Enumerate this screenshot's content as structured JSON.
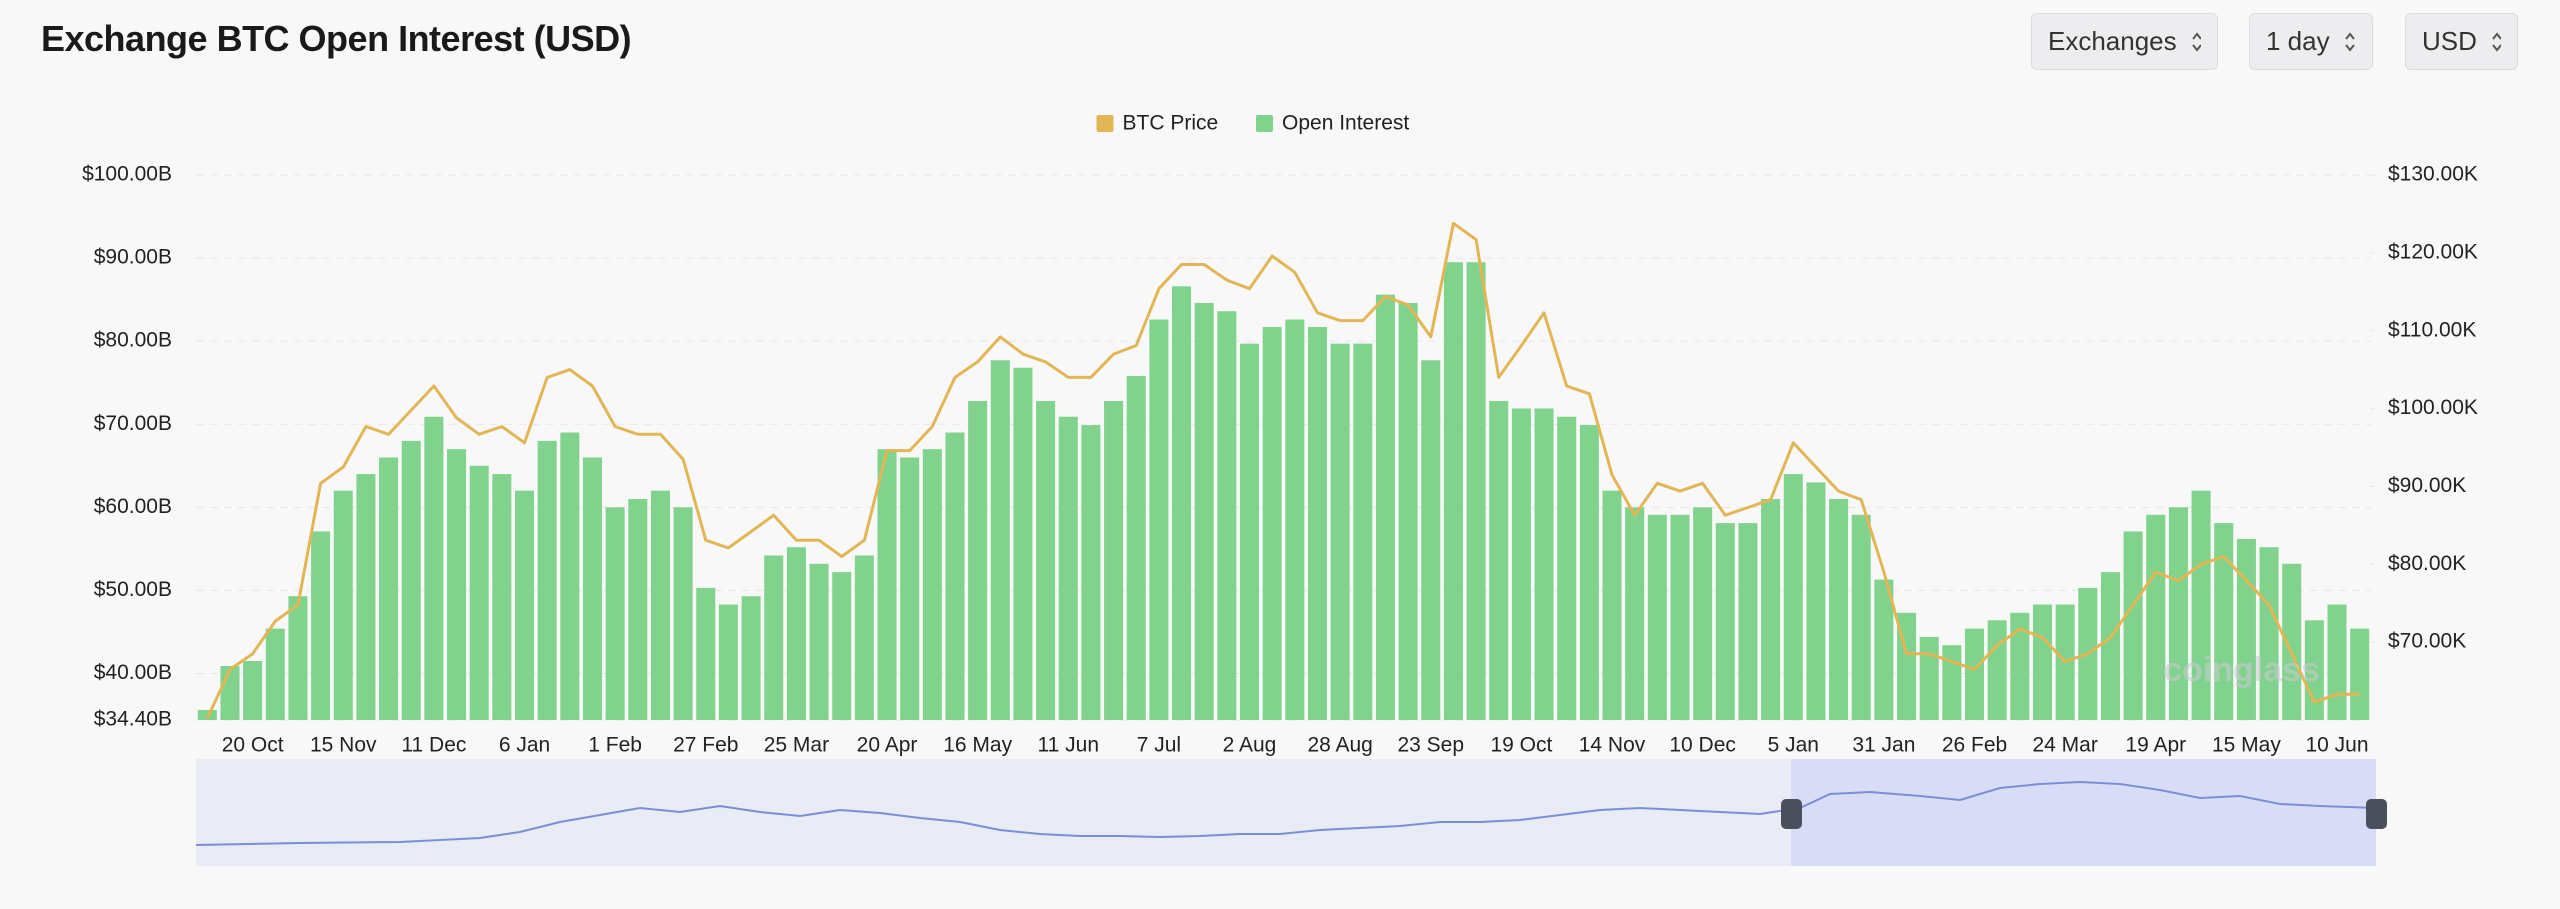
{
  "controls": [
    "Exchanges",
    "1 day",
    "USD"
  ],
  "chart_data": {
    "type": "bar",
    "title": "Exchange BTC Open Interest (USD)",
    "watermark": "coinglass",
    "legend": "top",
    "grid": true,
    "categories": [
      null,
      null,
      "20 Oct",
      null,
      null,
      null,
      "15 Nov",
      null,
      null,
      null,
      "11 Dec",
      null,
      null,
      null,
      "6 Jan",
      null,
      null,
      null,
      "1 Feb",
      null,
      null,
      null,
      "27 Feb",
      null,
      null,
      null,
      "25 Mar",
      null,
      null,
      null,
      "20 Apr",
      null,
      null,
      null,
      "16 May",
      null,
      null,
      null,
      "11 Jun",
      null,
      null,
      null,
      "7 Jul",
      null,
      null,
      null,
      "2 Aug",
      null,
      null,
      null,
      "28 Aug",
      null,
      null,
      null,
      "23 Sep",
      null,
      null,
      null,
      "19 Oct",
      null,
      null,
      null,
      "14 Nov",
      null,
      null,
      null,
      "10 Dec",
      null,
      null,
      null,
      "5 Jan",
      null,
      null,
      null,
      "31 Jan",
      null,
      null,
      null,
      "26 Feb",
      null,
      null,
      null,
      "24 Mar",
      null,
      null,
      null,
      "19 Apr",
      null,
      null,
      null,
      "15 May",
      null,
      null,
      null,
      "10 Jun",
      null
    ],
    "series": [
      {
        "name": "BTC Price",
        "type": "line",
        "axis": "y2",
        "color": "#e2b655",
        "values": [
          60.2,
          66.5,
          68.5,
          72.7,
          74.8,
          90.4,
          92.5,
          97.7,
          96.7,
          99.8,
          102.9,
          98.8,
          96.7,
          97.7,
          95.6,
          104,
          105,
          102.9,
          97.7,
          96.7,
          96.7,
          93.5,
          83.1,
          82.1,
          84.2,
          86.3,
          83.1,
          83.1,
          81,
          83.1,
          94.6,
          94.6,
          97.7,
          104,
          106,
          109.2,
          107,
          106,
          104,
          104,
          107,
          108.1,
          115.4,
          118.5,
          118.5,
          116.5,
          115.4,
          119.6,
          117.5,
          112.3,
          111.3,
          111.3,
          114.4,
          113.3,
          109.2,
          123.8,
          121.7,
          104,
          108.1,
          112.3,
          102.9,
          101.9,
          91.5,
          86.3,
          90.4,
          89.4,
          90.4,
          86.3,
          87.3,
          88.3,
          95.6,
          92.5,
          89.4,
          88.3,
          79,
          68.5,
          68.5,
          67.5,
          66.5,
          69.6,
          71.7,
          70.6,
          67.5,
          68.5,
          70.6,
          74.8,
          79,
          77.9,
          80,
          81,
          77.9,
          74.8,
          68.5,
          62.3,
          63.3,
          63.3
        ]
      },
      {
        "name": "Open Interest",
        "type": "bar",
        "color": "#80d28c",
        "values": [
          35.6,
          40.9,
          41.5,
          45.4,
          49.3,
          57.1,
          62,
          64,
          66,
          68,
          70.9,
          67,
          65,
          64,
          62,
          68,
          69,
          66,
          60,
          61,
          62,
          60,
          50.3,
          48.3,
          49.3,
          54.2,
          55.2,
          53.2,
          52.2,
          54.2,
          67,
          66,
          67,
          69,
          72.8,
          77.7,
          76.8,
          72.8,
          70.9,
          69.9,
          72.8,
          75.8,
          82.6,
          86.6,
          84.6,
          83.6,
          79.7,
          81.7,
          82.6,
          81.7,
          79.7,
          79.7,
          85.6,
          84.6,
          77.7,
          89.5,
          89.5,
          72.8,
          71.9,
          71.9,
          70.9,
          69.9,
          62,
          60,
          59.1,
          59.1,
          60,
          58.1,
          58.1,
          61,
          64,
          63,
          61,
          59.1,
          51.3,
          47.3,
          44.4,
          43.4,
          45.4,
          46.4,
          47.3,
          48.3,
          48.3,
          50.3,
          52.2,
          57.1,
          59.1,
          60,
          62,
          58.1,
          56.2,
          55.2,
          53.2,
          46.4,
          48.3,
          45.4
        ]
      }
    ],
    "ylim": [
      34.4,
      100
    ],
    "yticks": [
      {
        "value": 34.4,
        "label": "$34.40B"
      },
      {
        "value": 40,
        "label": "$40.00B"
      },
      {
        "value": 50,
        "label": "$50.00B"
      },
      {
        "value": 60,
        "label": "$60.00B"
      },
      {
        "value": 70,
        "label": "$70.00B"
      },
      {
        "value": 80,
        "label": "$80.00B"
      },
      {
        "value": 90,
        "label": "$90.00B"
      },
      {
        "value": 100,
        "label": "$100.00B"
      }
    ],
    "y2lim": [
      60,
      130
    ],
    "y2ticks": [
      {
        "value": 70,
        "label": "$70.00K"
      },
      {
        "value": 80,
        "label": "$80.00K"
      },
      {
        "value": 90,
        "label": "$90.00K"
      },
      {
        "value": 100,
        "label": "$100.00K"
      },
      {
        "value": 110,
        "label": "$110.00K"
      },
      {
        "value": 120,
        "label": "$120.00K"
      },
      {
        "value": 130,
        "label": "$130.00K"
      }
    ]
  }
}
